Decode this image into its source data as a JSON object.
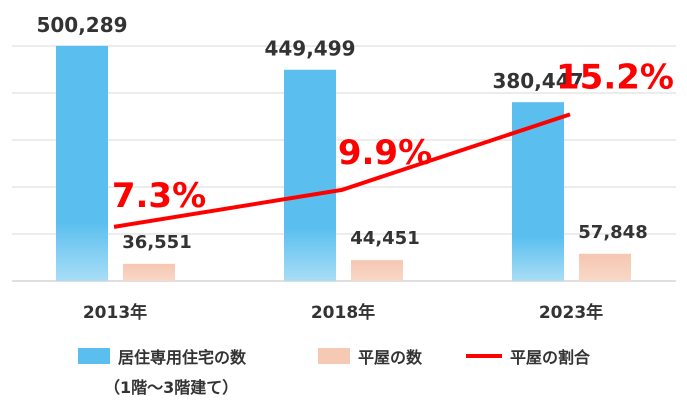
{
  "chart_data": {
    "type": "bar",
    "categories": [
      "2013年",
      "2018年",
      "2023年"
    ],
    "series": [
      {
        "name": "居住専用住宅の数",
        "name_sub": "（1階～3階建て）",
        "type": "bar",
        "values": [
          500289,
          449499,
          380447
        ],
        "labels": [
          "500,289",
          "449,499",
          "380,447"
        ],
        "color": "#5ABFEF"
      },
      {
        "name": "平屋の数",
        "type": "bar",
        "values": [
          36551,
          44451,
          57848
        ],
        "labels": [
          "36,551",
          "44,451",
          "57,848"
        ],
        "color": "#F6C9B4"
      },
      {
        "name": "平屋の割合",
        "type": "line",
        "values": [
          7.3,
          9.9,
          15.2
        ],
        "labels": [
          "7.3%",
          "9.9%",
          "15.2%"
        ],
        "color": "#FF0000"
      }
    ],
    "ylim": [
      0,
      500000
    ],
    "line_ylim": [
      3.5,
      20
    ],
    "grid": true,
    "legend": "bottom"
  }
}
